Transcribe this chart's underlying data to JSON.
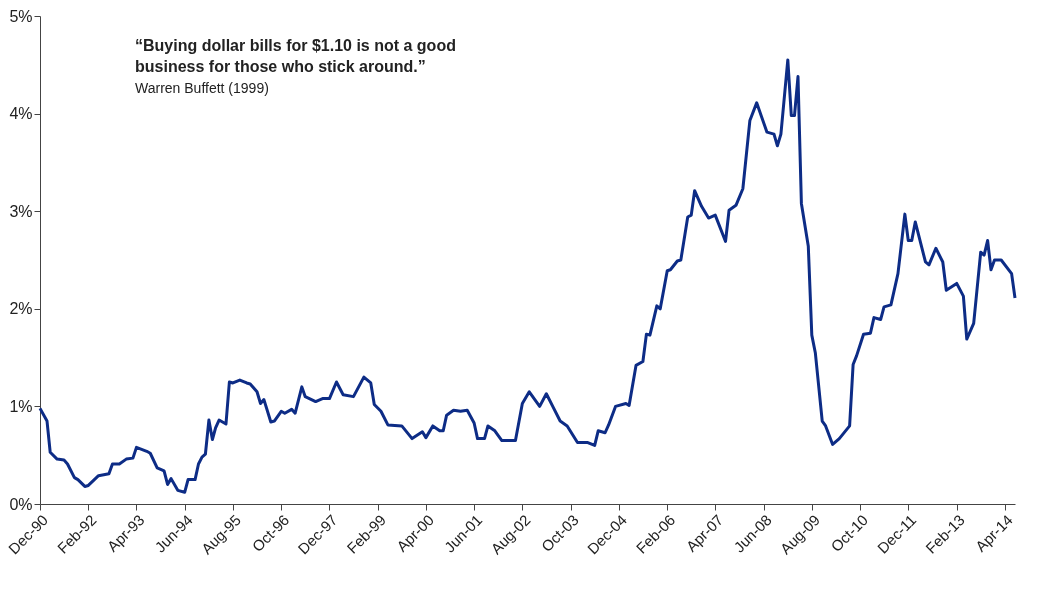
{
  "chart_data": {
    "type": "line",
    "annotations": [
      "“Buying dollar bills for $1.10 is not a good business for those who stick around.”",
      "Warren Buffett (1999)"
    ],
    "x": [
      "1990-12",
      "1991-02",
      "1991-03",
      "1991-05",
      "1991-07",
      "1991-08",
      "1991-10",
      "1991-11",
      "1992-01",
      "1992-02",
      "1992-05",
      "1992-08",
      "1992-09",
      "1992-11",
      "1993-01",
      "1993-03",
      "1993-04",
      "1993-07",
      "1993-08",
      "1993-10",
      "1993-12",
      "1994-01",
      "1994-02",
      "1994-04",
      "1994-06",
      "1994-07",
      "1994-09",
      "1994-10",
      "1994-11",
      "1994-12",
      "1995-01",
      "1995-02",
      "1995-03",
      "1995-04",
      "1995-06",
      "1995-07",
      "1995-08",
      "1995-10",
      "1995-12",
      "1996-01",
      "1996-03",
      "1996-04",
      "1996-05",
      "1996-07",
      "1996-08",
      "1996-10",
      "1996-11",
      "1997-01",
      "1997-02",
      "1997-04",
      "1997-05",
      "1997-08",
      "1997-10",
      "1997-12",
      "1998-02",
      "1998-04",
      "1998-07",
      "1998-10",
      "1998-12",
      "1999-01",
      "1999-03",
      "1999-05",
      "1999-09",
      "1999-12",
      "2000-03",
      "2000-04",
      "2000-06",
      "2000-08",
      "2000-09",
      "2000-10",
      "2000-12",
      "2001-02",
      "2001-04",
      "2001-06",
      "2001-07",
      "2001-09",
      "2001-10",
      "2001-12",
      "2002-02",
      "2002-06",
      "2002-08",
      "2002-10",
      "2003-01",
      "2003-03",
      "2003-05",
      "2003-07",
      "2003-09",
      "2003-12",
      "2004-03",
      "2004-05",
      "2004-06",
      "2004-08",
      "2004-09",
      "2004-11",
      "2005-02",
      "2005-03",
      "2005-05",
      "2005-07",
      "2005-08",
      "2005-09",
      "2005-11",
      "2005-12",
      "2006-02",
      "2006-03",
      "2006-05",
      "2006-06",
      "2006-08",
      "2006-09",
      "2006-10",
      "2006-12",
      "2007-02",
      "2007-04",
      "2007-07",
      "2007-08",
      "2007-10",
      "2007-12",
      "2008-02",
      "2008-04",
      "2008-07",
      "2008-09",
      "2008-10",
      "2008-11",
      "2009-01",
      "2009-02",
      "2009-03",
      "2009-04",
      "2009-05",
      "2009-07",
      "2009-08",
      "2009-09",
      "2009-11",
      "2009-12",
      "2010-02",
      "2010-04",
      "2010-07",
      "2010-08",
      "2010-09",
      "2010-11",
      "2011-01",
      "2011-02",
      "2011-04",
      "2011-05",
      "2011-07",
      "2011-09",
      "2011-11",
      "2011-12",
      "2012-01",
      "2012-02",
      "2012-05",
      "2012-06",
      "2012-08",
      "2012-10",
      "2012-11",
      "2013-02",
      "2013-04",
      "2013-05",
      "2013-07",
      "2013-09",
      "2013-10",
      "2013-11",
      "2013-12",
      "2014-01",
      "2014-03",
      "2014-06",
      "2014-07"
    ],
    "series": [
      {
        "color": "#0d2c86",
        "values": [
          0.98,
          0.85,
          0.53,
          0.46,
          0.45,
          0.41,
          0.27,
          0.25,
          0.18,
          0.19,
          0.29,
          0.31,
          0.41,
          0.41,
          0.46,
          0.47,
          0.58,
          0.54,
          0.52,
          0.37,
          0.34,
          0.2,
          0.26,
          0.14,
          0.12,
          0.25,
          0.25,
          0.41,
          0.48,
          0.51,
          0.86,
          0.66,
          0.78,
          0.86,
          0.82,
          1.25,
          1.24,
          1.27,
          1.24,
          1.23,
          1.15,
          1.03,
          1.07,
          0.84,
          0.85,
          0.95,
          0.93,
          0.97,
          0.93,
          1.2,
          1.1,
          1.05,
          1.08,
          1.08,
          1.25,
          1.12,
          1.1,
          1.3,
          1.24,
          1.02,
          0.95,
          0.81,
          0.8,
          0.67,
          0.74,
          0.68,
          0.8,
          0.75,
          0.75,
          0.91,
          0.96,
          0.95,
          0.96,
          0.83,
          0.67,
          0.67,
          0.8,
          0.75,
          0.65,
          0.65,
          1.03,
          1.15,
          1.0,
          1.13,
          0.99,
          0.85,
          0.8,
          0.63,
          0.63,
          0.6,
          0.75,
          0.73,
          0.81,
          1.0,
          1.03,
          1.01,
          1.42,
          1.46,
          1.74,
          1.73,
          2.03,
          2.0,
          2.39,
          2.4,
          2.49,
          2.5,
          2.94,
          2.96,
          3.21,
          3.05,
          2.93,
          2.96,
          2.69,
          3.01,
          3.06,
          3.23,
          3.93,
          4.11,
          3.81,
          3.79,
          3.67,
          3.79,
          4.55,
          3.98,
          3.98,
          4.38,
          3.08,
          2.64,
          1.73,
          1.55,
          0.85,
          0.8,
          0.61,
          0.67,
          0.8,
          1.43,
          1.52,
          1.74,
          1.75,
          1.91,
          1.89,
          2.02,
          2.04,
          2.36,
          2.97,
          2.7,
          2.7,
          2.89,
          2.48,
          2.45,
          2.62,
          2.48,
          2.19,
          2.26,
          2.13,
          1.69,
          1.85,
          2.58,
          2.55,
          2.7,
          2.4,
          2.5,
          2.5,
          2.36,
          2.11
        ]
      }
    ],
    "xlim": [
      "1990-12",
      "2014-07"
    ],
    "xticks": [
      {
        "value": "1990-12",
        "label": "Dec-90"
      },
      {
        "value": "1992-02",
        "label": "Feb-92"
      },
      {
        "value": "1993-04",
        "label": "Apr-93"
      },
      {
        "value": "1994-06",
        "label": "Jun-94"
      },
      {
        "value": "1995-08",
        "label": "Aug-95"
      },
      {
        "value": "1996-10",
        "label": "Oct-96"
      },
      {
        "value": "1997-12",
        "label": "Dec-97"
      },
      {
        "value": "1999-02",
        "label": "Feb-99"
      },
      {
        "value": "2000-04",
        "label": "Apr-00"
      },
      {
        "value": "2001-06",
        "label": "Jun-01"
      },
      {
        "value": "2002-08",
        "label": "Aug-02"
      },
      {
        "value": "2003-10",
        "label": "Oct-03"
      },
      {
        "value": "2004-12",
        "label": "Dec-04"
      },
      {
        "value": "2006-02",
        "label": "Feb-06"
      },
      {
        "value": "2007-04",
        "label": "Apr-07"
      },
      {
        "value": "2008-06",
        "label": "Jun-08"
      },
      {
        "value": "2009-08",
        "label": "Aug-09"
      },
      {
        "value": "2010-10",
        "label": "Oct-10"
      },
      {
        "value": "2011-12",
        "label": "Dec-11"
      },
      {
        "value": "2013-02",
        "label": "Feb-13"
      },
      {
        "value": "2014-04",
        "label": "Apr-14"
      }
    ],
    "ylim": [
      0,
      5
    ],
    "yticks": [
      {
        "value": 0,
        "label": "0%"
      },
      {
        "value": 1,
        "label": "1%"
      },
      {
        "value": 2,
        "label": "2%"
      },
      {
        "value": 3,
        "label": "3%"
      },
      {
        "value": 4,
        "label": "4%"
      },
      {
        "value": 5,
        "label": "5%"
      }
    ],
    "grid": false,
    "marker": "none",
    "line_style": "solid"
  }
}
